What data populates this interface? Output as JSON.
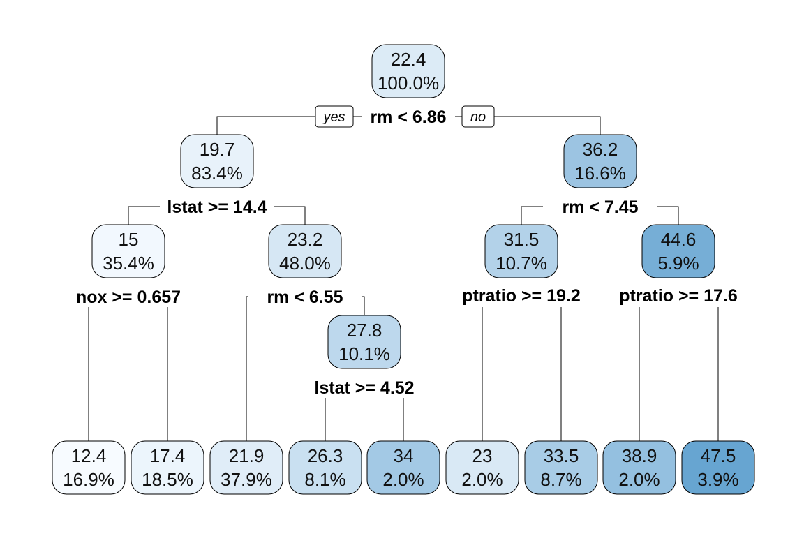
{
  "colors": {
    "light": "#f7fbff",
    "dark": "#5fa0cf"
  },
  "branch_labels": {
    "yes": "yes",
    "no": "no"
  },
  "nodes": [
    {
      "id": "n1",
      "value": "22.4",
      "percent": "100.0%",
      "shade": 0.18
    },
    {
      "id": "n2",
      "value": "19.7",
      "percent": "83.4%",
      "shade": 0.1
    },
    {
      "id": "n3",
      "value": "36.2",
      "percent": "16.6%",
      "shade": 0.6
    },
    {
      "id": "n4",
      "value": "15",
      "percent": "35.4%",
      "shade": 0.03
    },
    {
      "id": "n5",
      "value": "23.2",
      "percent": "48.0%",
      "shade": 0.22
    },
    {
      "id": "n6",
      "value": "31.5",
      "percent": "10.7%",
      "shade": 0.45
    },
    {
      "id": "n7",
      "value": "44.6",
      "percent": "5.9%",
      "shade": 0.85
    },
    {
      "id": "n8",
      "value": "27.8",
      "percent": "10.1%",
      "shade": 0.38
    },
    {
      "id": "l1",
      "value": "12.4",
      "percent": "16.9%",
      "shade": 0.0
    },
    {
      "id": "l2",
      "value": "17.4",
      "percent": "18.5%",
      "shade": 0.07
    },
    {
      "id": "l3",
      "value": "21.9",
      "percent": "37.9%",
      "shade": 0.15
    },
    {
      "id": "l4",
      "value": "26.3",
      "percent": "8.1%",
      "shade": 0.3
    },
    {
      "id": "l5",
      "value": "34",
      "percent": "2.0%",
      "shade": 0.55
    },
    {
      "id": "l6",
      "value": "23",
      "percent": "2.0%",
      "shade": 0.2
    },
    {
      "id": "l7",
      "value": "33.5",
      "percent": "8.7%",
      "shade": 0.52
    },
    {
      "id": "l8",
      "value": "38.9",
      "percent": "2.0%",
      "shade": 0.65
    },
    {
      "id": "l9",
      "value": "47.5",
      "percent": "3.9%",
      "shade": 0.95
    }
  ],
  "splits": [
    {
      "id": "s1",
      "label": "rm < 6.86"
    },
    {
      "id": "s2",
      "label": "lstat >= 14.4"
    },
    {
      "id": "s3",
      "label": "rm < 7.45"
    },
    {
      "id": "s4",
      "label": "nox >= 0.657"
    },
    {
      "id": "s5",
      "label": "rm < 6.55"
    },
    {
      "id": "s6",
      "label": "ptratio >= 19.2"
    },
    {
      "id": "s7",
      "label": "ptratio >= 17.6"
    },
    {
      "id": "s8",
      "label": "lstat >= 4.52"
    }
  ]
}
